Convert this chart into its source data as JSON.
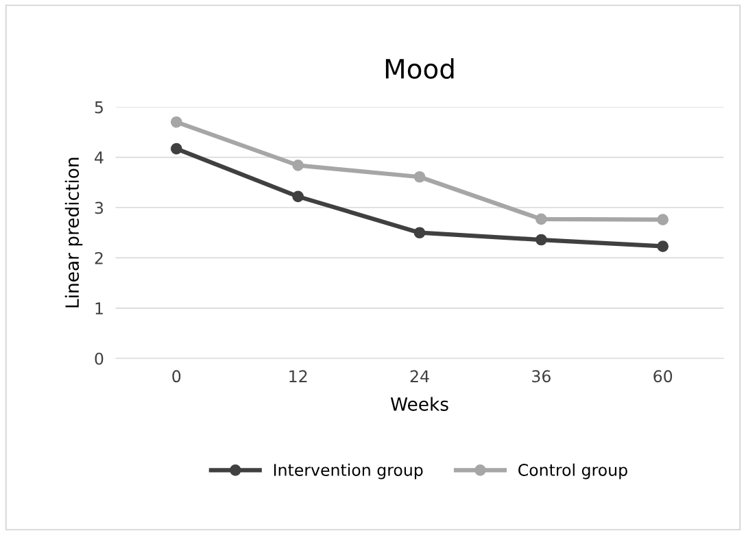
{
  "chart_data": {
    "type": "line",
    "title": "Mood",
    "xlabel": "Weeks",
    "ylabel": "Linear prediction",
    "categories": [
      "0",
      "12",
      "24",
      "36",
      "60"
    ],
    "series": [
      {
        "name": "Intervention group",
        "color": "#404040",
        "values": [
          4.17,
          3.22,
          2.5,
          2.36,
          2.23
        ]
      },
      {
        "name": "Control group",
        "color": "#a6a6a6",
        "values": [
          4.7,
          3.84,
          3.61,
          2.77,
          2.76
        ]
      }
    ],
    "ylim": [
      0,
      5
    ],
    "yticks": [
      0,
      1,
      2,
      3,
      4,
      5
    ],
    "grid": "y",
    "legend": "bottom",
    "marker": "circle",
    "line_style": "solid"
  }
}
